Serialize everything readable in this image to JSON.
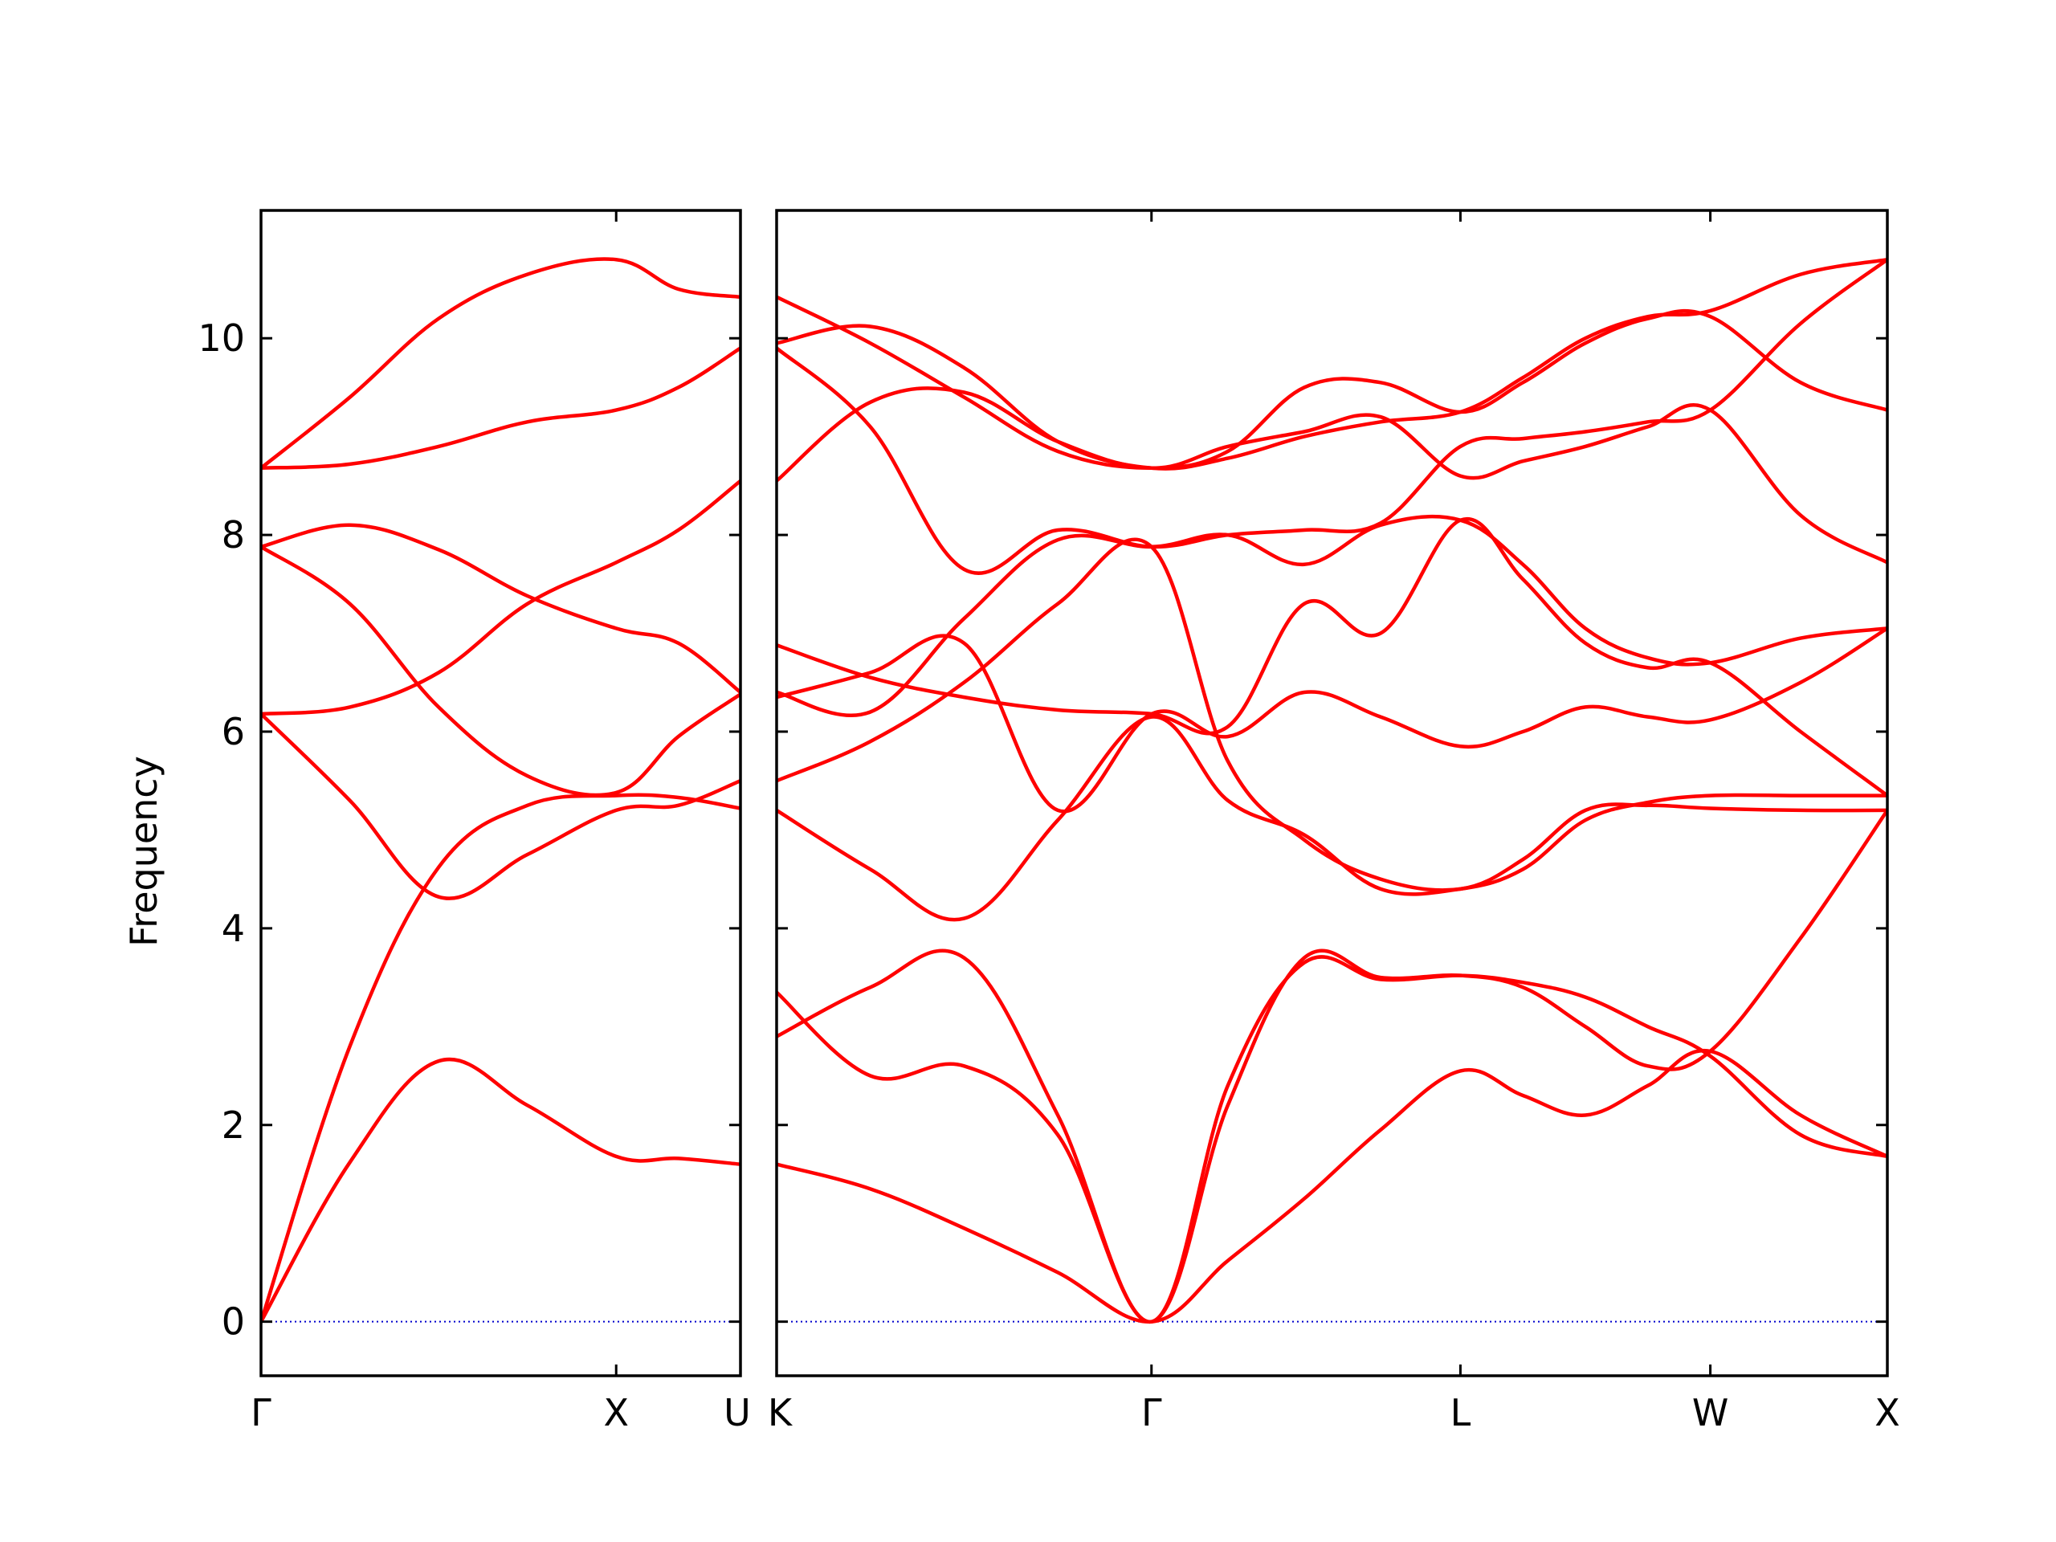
{
  "chart_data": {
    "type": "line",
    "ylabel": "Frequency",
    "ylim": [
      -0.55,
      11.3
    ],
    "yticks": [
      0,
      2,
      4,
      6,
      8,
      10
    ],
    "ytick_labels": [
      "0",
      "2",
      "4",
      "6",
      "8",
      "10"
    ],
    "colors": {
      "bands": "#ff0000",
      "zero_line": "#0000cc",
      "axes": "#000000"
    },
    "segments": [
      {
        "path": "Γ–X–U",
        "x_range": [
          0,
          1.35
        ],
        "ticks": [
          {
            "x": 0,
            "label": "Γ"
          },
          {
            "x": 1.0,
            "label": "X"
          },
          {
            "x": 1.35,
            "label": "U"
          }
        ],
        "x": [
          0,
          0.25,
          0.5,
          0.75,
          1.0,
          1.175,
          1.35
        ],
        "bands": [
          [
            0,
            1.62,
            2.65,
            2.2,
            1.68,
            1.66,
            1.6
          ],
          [
            0,
            2.8,
            4.62,
            5.25,
            5.35,
            5.33,
            5.22
          ],
          [
            6.18,
            5.3,
            4.32,
            4.75,
            5.2,
            5.25,
            5.5
          ],
          [
            6.18,
            6.25,
            6.6,
            7.3,
            7.72,
            8.05,
            8.55
          ],
          [
            7.88,
            7.3,
            6.25,
            5.55,
            5.38,
            5.95,
            6.38
          ],
          [
            7.88,
            8.1,
            7.85,
            7.38,
            7.05,
            6.9,
            6.4
          ],
          [
            8.68,
            8.72,
            8.9,
            9.15,
            9.27,
            9.5,
            9.9
          ],
          [
            8.68,
            9.4,
            10.2,
            10.65,
            10.8,
            10.5,
            10.42
          ]
        ]
      },
      {
        "path": "K–Γ–L–W–X",
        "x_range": [
          0,
          3.2
        ],
        "ticks": [
          {
            "x": 0,
            "label": "K"
          },
          {
            "x": 1.08,
            "label": "Γ"
          },
          {
            "x": 1.97,
            "label": "L"
          },
          {
            "x": 2.69,
            "label": "W"
          },
          {
            "x": 3.2,
            "label": "X"
          }
        ],
        "x": [
          0,
          0.27,
          0.54,
          0.81,
          1.08,
          1.3,
          1.52,
          1.74,
          1.97,
          2.15,
          2.33,
          2.51,
          2.69,
          2.95,
          3.2
        ],
        "bands": [
          [
            1.6,
            1.35,
            0.95,
            0.5,
            0,
            0.62,
            1.25,
            1.95,
            2.55,
            2.3,
            2.1,
            2.4,
            2.75,
            2.1,
            1.68
          ],
          [
            2.9,
            3.4,
            3.7,
            2.1,
            0,
            2.4,
            3.65,
            3.48,
            3.52,
            3.45,
            3.3,
            3.0,
            2.7,
            1.9,
            1.68
          ],
          [
            3.35,
            2.5,
            2.6,
            1.9,
            0,
            2.2,
            3.7,
            3.5,
            3.52,
            3.4,
            3.0,
            2.6,
            2.75,
            3.9,
            5.2
          ],
          [
            5.2,
            4.6,
            4.1,
            5.1,
            6.15,
            5.3,
            4.95,
            4.4,
            4.4,
            4.6,
            5.1,
            5.28,
            5.35,
            5.35,
            5.35
          ],
          [
            5.5,
            5.9,
            6.5,
            7.3,
            7.88,
            5.7,
            4.9,
            4.5,
            4.4,
            4.7,
            5.2,
            5.25,
            5.22,
            5.2,
            5.2
          ],
          [
            6.35,
            6.6,
            6.9,
            5.2,
            6.18,
            5.95,
            6.4,
            6.15,
            5.85,
            6.0,
            6.25,
            6.15,
            6.12,
            6.5,
            7.05
          ],
          [
            6.88,
            6.55,
            6.35,
            6.22,
            6.18,
            6.05,
            7.3,
            7.0,
            8.15,
            7.55,
            6.9,
            6.65,
            6.7,
            6.0,
            5.35
          ],
          [
            6.4,
            6.2,
            7.15,
            7.95,
            7.88,
            8.0,
            7.7,
            8.1,
            8.15,
            7.7,
            7.05,
            6.75,
            6.7,
            6.95,
            7.05
          ],
          [
            8.55,
            9.35,
            9.45,
            8.95,
            8.68,
            8.9,
            9.05,
            9.2,
            8.6,
            8.75,
            8.9,
            9.1,
            9.27,
            8.2,
            7.72
          ],
          [
            9.9,
            9.1,
            7.65,
            8.05,
            7.88,
            8.0,
            8.05,
            8.12,
            8.9,
            8.98,
            9.05,
            9.15,
            9.27,
            10.15,
            10.8
          ],
          [
            10.42,
            9.95,
            9.4,
            8.85,
            8.68,
            8.85,
            9.5,
            9.55,
            9.25,
            9.55,
            9.95,
            10.2,
            10.22,
            9.55,
            9.27
          ],
          [
            9.95,
            10.12,
            9.7,
            8.95,
            8.68,
            8.78,
            9.0,
            9.15,
            9.25,
            9.6,
            10.0,
            10.22,
            10.28,
            10.65,
            10.8
          ]
        ]
      }
    ]
  }
}
